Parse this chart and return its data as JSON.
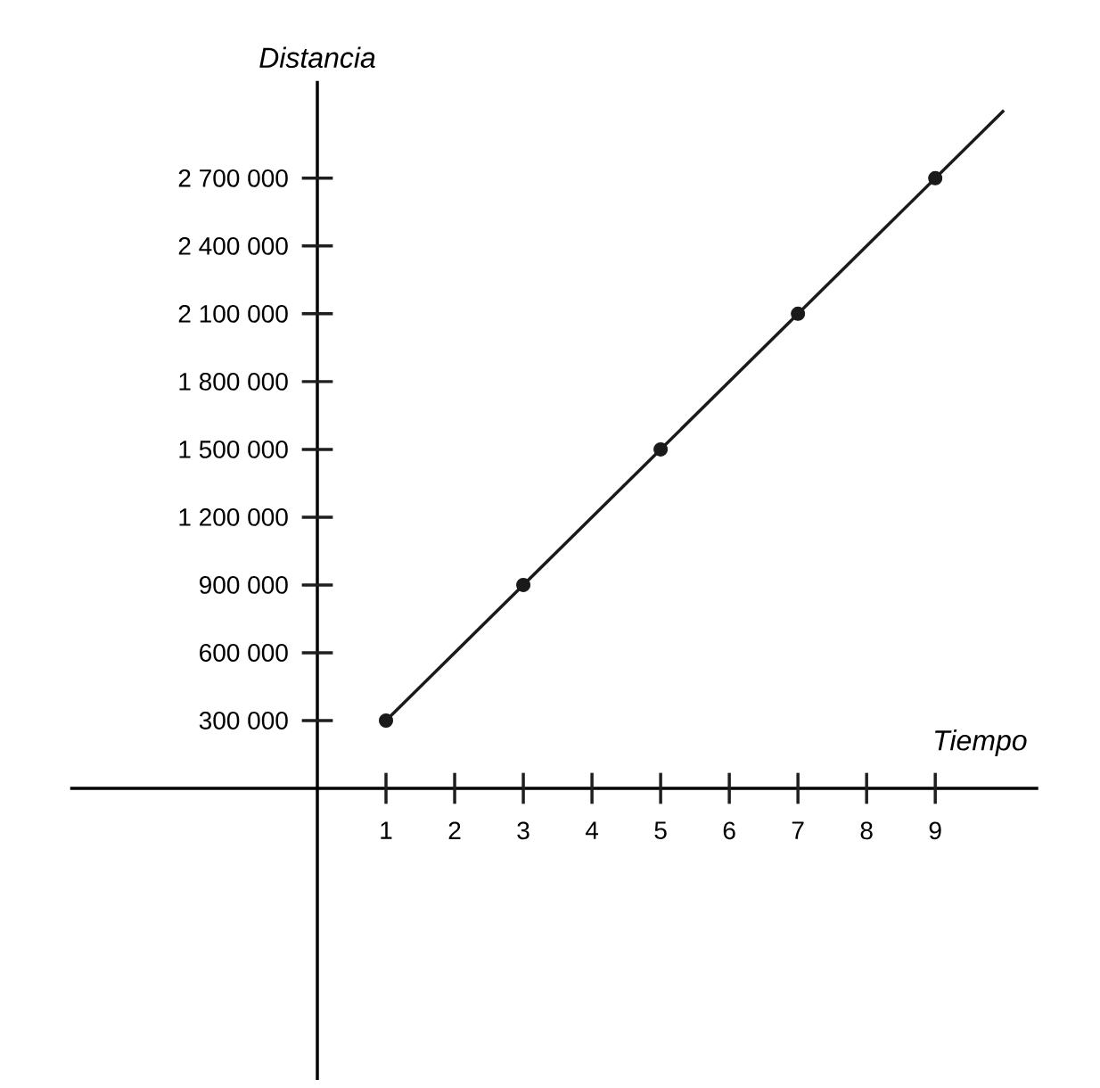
{
  "chart_data": {
    "type": "line",
    "xlabel": "Tiempo",
    "ylabel": "Distancia",
    "xlim": [
      -3.6,
      10.5
    ],
    "ylim": [
      -1290000,
      3130000
    ],
    "xticks": [
      1,
      2,
      3,
      4,
      5,
      6,
      7,
      8,
      9
    ],
    "yticks": [
      {
        "value": 300000,
        "label": "300 000"
      },
      {
        "value": 600000,
        "label": "600 000"
      },
      {
        "value": 900000,
        "label": "900 000"
      },
      {
        "value": 1200000,
        "label": "1 200 000"
      },
      {
        "value": 1500000,
        "label": "1 500 000"
      },
      {
        "value": 1800000,
        "label": "1 800 000"
      },
      {
        "value": 2100000,
        "label": "2 100 000"
      },
      {
        "value": 2400000,
        "label": "2 400 000"
      },
      {
        "value": 2700000,
        "label": "2 700 000"
      }
    ],
    "series": [
      {
        "type": "line",
        "x": [
          1,
          10
        ],
        "values": [
          300000,
          3000000
        ],
        "color": "#1a1a1a",
        "marker": "none"
      },
      {
        "type": "scatter",
        "x": [
          1,
          3,
          5,
          7,
          9
        ],
        "values": [
          300000,
          900000,
          1500000,
          2100000,
          2700000
        ],
        "color": "#1a1a1a",
        "marker": "circle"
      }
    ]
  }
}
